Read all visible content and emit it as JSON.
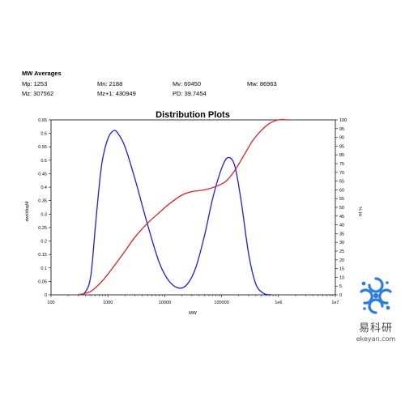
{
  "mw_averages": {
    "title": "MW Averages",
    "mp": "Mp: 1253",
    "mn": "Mn: 2188",
    "mv": "Mv: 60450",
    "mw": "Mw: 86963",
    "mz": "Mz: 307562",
    "mz1": "Mz+1: 430949",
    "pd": "PD: 39.7454"
  },
  "chart_data": {
    "type": "line",
    "title": "Distribution Plots",
    "xlabel": "MW",
    "ylabel_left": "dwt/dlogM",
    "ylabel_right": "% Hi",
    "x_scale": "log",
    "xlim": [
      100,
      10000000
    ],
    "ylim_left": [
      0,
      0.65
    ],
    "ylim_right": [
      0,
      100
    ],
    "x_tick_labels": [
      "100",
      "1000",
      "10000",
      "100000",
      "1e6",
      "1e7"
    ],
    "y_left_tick_labels": [
      "0",
      "0.05",
      "0.1",
      "0.15",
      "0.2",
      "0.25",
      "0.3",
      "0.35",
      "0.4",
      "0.45",
      "0.5",
      "0.55",
      "0.6",
      "0.65"
    ],
    "y_right_tick_labels": [
      "0",
      "5",
      "10",
      "15",
      "20",
      "25",
      "30",
      "35",
      "40",
      "45",
      "50",
      "55",
      "60",
      "65",
      "70",
      "75",
      "80",
      "85",
      "90",
      "95",
      "100"
    ],
    "grid": false,
    "series": [
      {
        "axis": "left",
        "color": "#1a1aff",
        "x": [
          300,
          400,
          500,
          600,
          700,
          800,
          1000,
          1253,
          1500,
          2000,
          3000,
          5000,
          8000,
          12000,
          18000,
          25000,
          35000,
          50000,
          70000,
          100000,
          130000,
          170000,
          220000,
          300000,
          400000,
          550000,
          750000
        ],
        "y": [
          0,
          0.01,
          0.07,
          0.25,
          0.4,
          0.5,
          0.58,
          0.61,
          0.6,
          0.55,
          0.43,
          0.26,
          0.12,
          0.05,
          0.025,
          0.04,
          0.1,
          0.22,
          0.36,
          0.47,
          0.51,
          0.48,
          0.35,
          0.15,
          0.04,
          0.005,
          0
        ]
      },
      {
        "axis": "right",
        "color": "#e02020",
        "x": [
          300,
          500,
          800,
          1253,
          2000,
          3000,
          5000,
          8000,
          12000,
          20000,
          30000,
          50000,
          80000,
          120000,
          170000,
          250000,
          350000,
          500000,
          700000,
          1000000,
          1500000
        ],
        "y": [
          0,
          2,
          8,
          16,
          25,
          33,
          41,
          47,
          52,
          57,
          59,
          60,
          62,
          65,
          71,
          80,
          88,
          94,
          98,
          100,
          100
        ]
      }
    ]
  },
  "brand": {
    "name_cn": "易科研",
    "domain": "ekeyan.com",
    "color": "#2a7de1"
  }
}
